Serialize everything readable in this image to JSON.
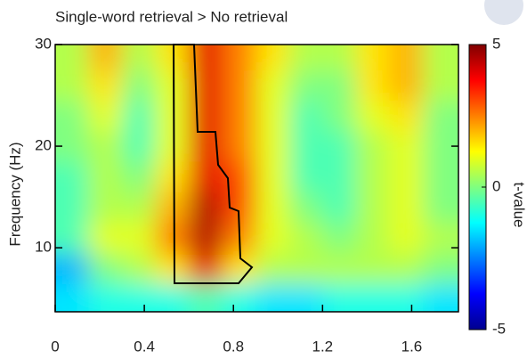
{
  "chart_data": {
    "type": "heatmap",
    "title": "Single-word retrieval > No retrieval",
    "y_label": "Frequency (Hz)",
    "colorbar_label": "t-value",
    "x": [
      0.075,
      0.225,
      0.375,
      0.525,
      0.675,
      0.825,
      0.975,
      1.125,
      1.275,
      1.425,
      1.575,
      1.725
    ],
    "y": [
      5,
      8,
      11,
      14,
      17,
      20,
      23,
      26,
      29
    ],
    "z": [
      [
        -1.5,
        -1,
        -1,
        -1,
        -0.5,
        -1,
        -1.5,
        -1.5,
        -1,
        -1,
        -1,
        -1.5
      ],
      [
        -2,
        0,
        0.5,
        1.5,
        4,
        1.5,
        0.5,
        0.5,
        0.5,
        0.5,
        0.5,
        0
      ],
      [
        -0.5,
        1,
        1,
        2.5,
        4.5,
        2.5,
        1,
        0.5,
        0,
        0.5,
        1,
        0.5
      ],
      [
        -0.5,
        0.5,
        0.5,
        2,
        4.5,
        3,
        1,
        0,
        -0.5,
        0.5,
        1,
        0
      ],
      [
        -0.5,
        0.5,
        0,
        1.5,
        4,
        3,
        1,
        -0.5,
        -0.5,
        0.5,
        1,
        0
      ],
      [
        0,
        0.5,
        -0.5,
        1,
        4,
        2.5,
        1,
        -0.5,
        -0.5,
        0.5,
        1,
        0
      ],
      [
        0,
        1,
        -0.5,
        1,
        4,
        2.5,
        1,
        -0.5,
        0,
        1,
        1.5,
        0
      ],
      [
        0.5,
        1.5,
        0,
        1,
        4,
        2.5,
        1,
        0,
        0,
        1.5,
        2,
        0.5
      ],
      [
        0.5,
        2,
        0.5,
        1.5,
        4,
        2.5,
        1.5,
        0.5,
        0.5,
        1.5,
        2,
        0.5
      ]
    ],
    "xlim": [
      0,
      1.81
    ],
    "ylim": [
      3.7,
      30
    ],
    "xticks": [
      0,
      0.4,
      0.8,
      1.2,
      1.6
    ],
    "yticks": [
      10,
      20,
      30
    ],
    "clim": [
      -5,
      5
    ],
    "cticks": [
      -5,
      0,
      5
    ],
    "colormap": "jet"
  }
}
